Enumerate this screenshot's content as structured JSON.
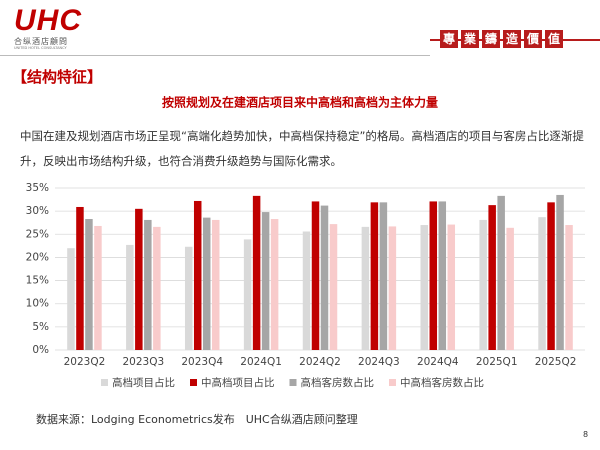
{
  "header": {
    "logo": "UHC",
    "logo_cn": "合纵酒店顧問",
    "logo_en": "UNITED HOTEL CONSULTANCY",
    "slogan": [
      "專",
      "業",
      "鑄",
      "造",
      "價",
      "值"
    ]
  },
  "section_title": "【结构特征】",
  "paragraph": "中国在建及规划酒店市场正呈现“高端化趋势加快，中高档保持稳定”的格局。高档酒店的项目与客房占比逐渐提升，反映出市场结构升级，也符合消费升级趋势与国际化需求。",
  "chart_data": {
    "type": "bar",
    "title": "按照规划及在建酒店项目来中高档和高档为主体力量",
    "categories": [
      "2023Q2",
      "2023Q3",
      "2023Q4",
      "2024Q1",
      "2024Q2",
      "2024Q3",
      "2024Q4",
      "2025Q1",
      "2025Q2"
    ],
    "series": [
      {
        "name": "高档项目占比",
        "color": "#d9d9d9",
        "values": [
          22.0,
          22.7,
          22.3,
          23.9,
          25.6,
          26.6,
          27.0,
          28.1,
          28.7
        ]
      },
      {
        "name": "中高档项目占比",
        "color": "#c00000",
        "values": [
          30.9,
          30.5,
          32.2,
          33.3,
          32.1,
          31.9,
          32.1,
          31.3,
          31.9
        ]
      },
      {
        "name": "高档客房数占比",
        "color": "#a6a6a6",
        "values": [
          28.3,
          28.1,
          28.6,
          29.8,
          31.2,
          31.9,
          32.1,
          33.3,
          33.5
        ]
      },
      {
        "name": "中高档客房数占比",
        "color": "#f8cbcb",
        "values": [
          26.8,
          26.6,
          28.1,
          28.3,
          27.2,
          26.7,
          27.1,
          26.4,
          27.0
        ]
      }
    ],
    "ylim": [
      0,
      35
    ],
    "yticks": [
      {
        "value": 0,
        "label": "0%"
      },
      {
        "value": 5,
        "label": "5%"
      },
      {
        "value": 10,
        "label": "10%"
      },
      {
        "value": 15,
        "label": "15%"
      },
      {
        "value": 20,
        "label": "20%"
      },
      {
        "value": 25,
        "label": "25%"
      },
      {
        "value": 30,
        "label": "30%"
      },
      {
        "value": 35,
        "label": "35%"
      }
    ],
    "grid": true,
    "legend": "bottom"
  },
  "source": "数据来源：Lodging Econometrics发布　UHC合纵酒店顾问整理",
  "page_number": "8"
}
